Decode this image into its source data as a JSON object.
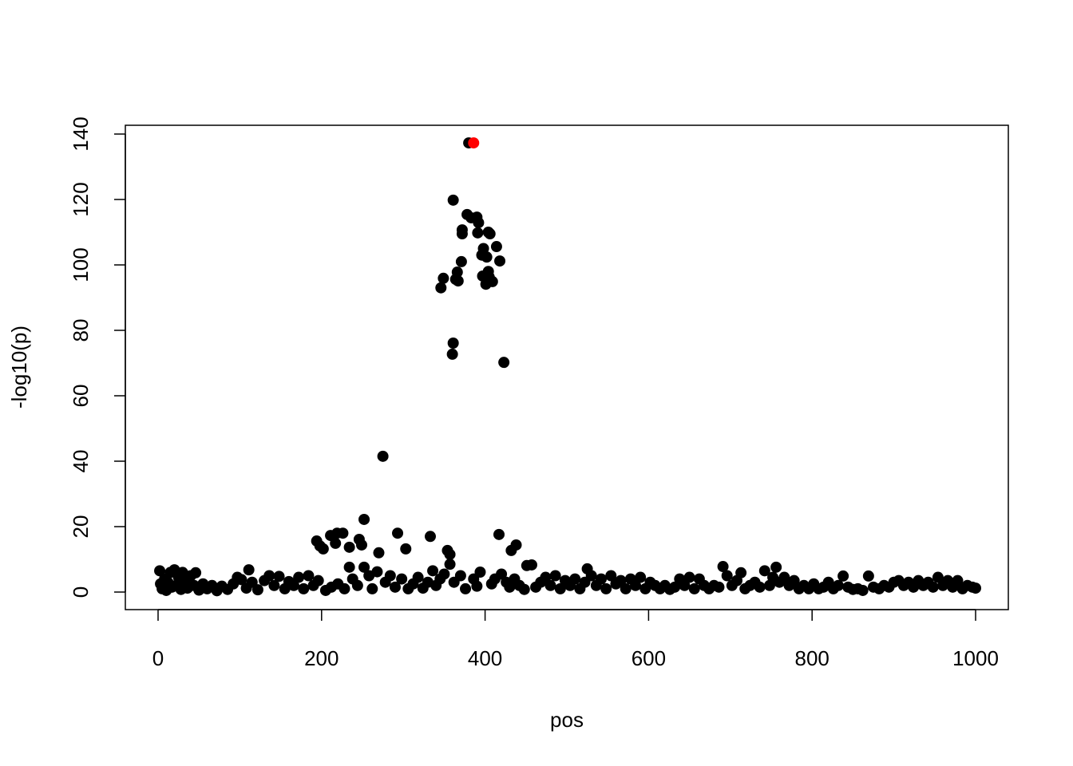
{
  "chart_data": {
    "type": "scatter",
    "title": "",
    "xlabel": "pos",
    "ylabel": "-log10(p)",
    "xlim": [
      -40,
      1040
    ],
    "ylim": [
      -5,
      143
    ],
    "xticks": [
      0,
      200,
      400,
      600,
      800,
      1000
    ],
    "yticks": [
      0,
      20,
      40,
      60,
      80,
      100,
      120,
      140
    ],
    "grid": false,
    "legend": "none",
    "colors": {
      "default": "#000000",
      "highlight": "#FF0000"
    },
    "series": [
      {
        "color": "#000000",
        "points": [
          [
            380,
            137.3
          ],
          [
            361,
            119.8
          ],
          [
            378,
            115.4
          ],
          [
            383,
            114.4
          ],
          [
            390,
            114.6
          ],
          [
            392,
            112.9
          ],
          [
            372,
            110.7
          ],
          [
            372,
            109.5
          ],
          [
            391,
            109.8
          ],
          [
            404,
            110
          ],
          [
            406,
            109.5
          ],
          [
            414,
            105.6
          ],
          [
            398,
            105
          ],
          [
            396,
            103
          ],
          [
            402,
            102.4
          ],
          [
            371,
            101
          ],
          [
            418,
            101.2
          ],
          [
            349,
            95.9
          ],
          [
            346,
            93
          ],
          [
            366,
            97.8
          ],
          [
            364,
            95.6
          ],
          [
            367,
            95.1
          ],
          [
            397,
            96.6
          ],
          [
            405,
            96.3
          ],
          [
            409,
            94.9
          ],
          [
            401,
            94.1
          ],
          [
            404,
            98
          ],
          [
            361,
            76.1
          ],
          [
            360,
            72.7
          ],
          [
            423,
            70.2
          ],
          [
            275,
            41.5
          ],
          [
            252,
            22.2
          ],
          [
            194,
            15.6
          ],
          [
            202,
            13.2
          ],
          [
            198,
            14.1
          ],
          [
            211,
            17.3
          ],
          [
            219,
            18
          ],
          [
            226,
            18
          ],
          [
            217,
            14.9
          ],
          [
            234,
            13.7
          ],
          [
            246,
            16.1
          ],
          [
            249,
            14.4
          ],
          [
            270,
            12
          ],
          [
            293,
            18
          ],
          [
            303,
            13.2
          ],
          [
            333,
            17
          ],
          [
            354,
            12.7
          ],
          [
            357,
            11.5
          ],
          [
            417,
            17.6
          ],
          [
            438,
            14.4
          ],
          [
            432,
            12.7
          ],
          [
            357,
            8.5
          ],
          [
            394,
            6.1
          ],
          [
            234,
            7.6
          ],
          [
            252,
            7.6
          ],
          [
            111,
            6.8
          ],
          [
            46,
            5.9
          ],
          [
            691,
            7.8
          ],
          [
            756,
            7.6
          ],
          [
            525,
            7.1
          ],
          [
            451,
            8.1
          ],
          [
            457,
            8.3
          ],
          [
            838,
            4.9
          ],
          [
            869,
            4.9
          ],
          [
            713,
            5.9
          ],
          [
            2,
            6.5
          ],
          [
            3,
            2.5
          ],
          [
            5,
            1
          ],
          [
            8,
            4
          ],
          [
            10,
            0.5
          ],
          [
            12,
            3
          ],
          [
            15,
            6
          ],
          [
            17,
            1.5
          ],
          [
            20,
            6.8
          ],
          [
            22,
            2
          ],
          [
            25,
            4.5
          ],
          [
            28,
            0.8
          ],
          [
            30,
            6
          ],
          [
            33,
            3
          ],
          [
            36,
            1.2
          ],
          [
            40,
            5
          ],
          [
            44,
            2
          ],
          [
            50,
            0.6
          ],
          [
            55,
            2.5
          ],
          [
            60,
            1
          ],
          [
            66,
            2
          ],
          [
            72,
            0.4
          ],
          [
            78,
            1.8
          ],
          [
            85,
            0.8
          ],
          [
            92,
            2.5
          ],
          [
            97,
            4.5
          ],
          [
            102,
            3.8
          ],
          [
            108,
            1.2
          ],
          [
            115,
            3
          ],
          [
            122,
            0.7
          ],
          [
            130,
            3.5
          ],
          [
            136,
            5
          ],
          [
            142,
            2
          ],
          [
            148,
            4.8
          ],
          [
            155,
            1
          ],
          [
            160,
            3.2
          ],
          [
            166,
            2
          ],
          [
            172,
            4.5
          ],
          [
            178,
            1
          ],
          [
            184,
            5
          ],
          [
            190,
            2
          ],
          [
            196,
            3.5
          ],
          [
            205,
            0.5
          ],
          [
            212,
            1.5
          ],
          [
            220,
            2.5
          ],
          [
            228,
            1
          ],
          [
            238,
            4
          ],
          [
            244,
            2
          ],
          [
            258,
            5
          ],
          [
            262,
            1
          ],
          [
            268,
            6.2
          ],
          [
            278,
            3
          ],
          [
            284,
            5
          ],
          [
            290,
            1.5
          ],
          [
            298,
            4
          ],
          [
            306,
            1
          ],
          [
            312,
            2.5
          ],
          [
            318,
            4.5
          ],
          [
            324,
            1.2
          ],
          [
            330,
            3
          ],
          [
            336,
            6.5
          ],
          [
            340,
            2
          ],
          [
            345,
            4
          ],
          [
            350,
            5.5
          ],
          [
            362,
            3
          ],
          [
            370,
            5
          ],
          [
            376,
            1
          ],
          [
            386,
            4
          ],
          [
            390,
            1.8
          ],
          [
            408,
            2.5
          ],
          [
            412,
            4
          ],
          [
            420,
            5.5
          ],
          [
            426,
            3
          ],
          [
            430,
            1.5
          ],
          [
            436,
            4
          ],
          [
            442,
            2
          ],
          [
            448,
            0.8
          ],
          [
            462,
            1.5
          ],
          [
            468,
            3
          ],
          [
            474,
            4.5
          ],
          [
            480,
            2
          ],
          [
            486,
            5
          ],
          [
            492,
            1
          ],
          [
            498,
            3.5
          ],
          [
            504,
            2
          ],
          [
            510,
            4
          ],
          [
            516,
            1
          ],
          [
            522,
            3
          ],
          [
            530,
            5
          ],
          [
            536,
            2
          ],
          [
            542,
            4
          ],
          [
            548,
            1
          ],
          [
            554,
            5
          ],
          [
            560,
            2.5
          ],
          [
            566,
            3.5
          ],
          [
            572,
            1
          ],
          [
            578,
            4
          ],
          [
            584,
            2
          ],
          [
            590,
            4.5
          ],
          [
            596,
            1
          ],
          [
            602,
            3
          ],
          [
            608,
            2
          ],
          [
            614,
            1
          ],
          [
            620,
            2
          ],
          [
            626,
            0.8
          ],
          [
            632,
            1.5
          ],
          [
            638,
            4
          ],
          [
            644,
            2
          ],
          [
            650,
            4.5
          ],
          [
            656,
            1
          ],
          [
            662,
            4
          ],
          [
            668,
            2
          ],
          [
            674,
            1
          ],
          [
            680,
            2
          ],
          [
            686,
            1.5
          ],
          [
            696,
            5
          ],
          [
            702,
            2
          ],
          [
            708,
            3.5
          ],
          [
            718,
            1
          ],
          [
            724,
            2
          ],
          [
            730,
            3
          ],
          [
            736,
            1.5
          ],
          [
            742,
            6.5
          ],
          [
            748,
            2
          ],
          [
            752,
            4.5
          ],
          [
            760,
            3
          ],
          [
            766,
            4.5
          ],
          [
            772,
            2
          ],
          [
            778,
            3.5
          ],
          [
            784,
            1
          ],
          [
            790,
            2
          ],
          [
            796,
            1
          ],
          [
            802,
            2.5
          ],
          [
            808,
            1
          ],
          [
            814,
            1.5
          ],
          [
            820,
            3
          ],
          [
            826,
            1
          ],
          [
            832,
            2
          ],
          [
            844,
            1.5
          ],
          [
            850,
            0.8
          ],
          [
            856,
            1
          ],
          [
            862,
            0.5
          ],
          [
            875,
            1.5
          ],
          [
            882,
            1
          ],
          [
            888,
            2
          ],
          [
            894,
            1.5
          ],
          [
            900,
            3
          ],
          [
            906,
            3.5
          ],
          [
            912,
            2
          ],
          [
            918,
            3
          ],
          [
            924,
            1.5
          ],
          [
            930,
            3.5
          ],
          [
            936,
            2
          ],
          [
            942,
            3
          ],
          [
            948,
            1.5
          ],
          [
            954,
            4.5
          ],
          [
            960,
            2
          ],
          [
            966,
            3.5
          ],
          [
            972,
            1.5
          ],
          [
            978,
            3.5
          ],
          [
            984,
            1
          ],
          [
            990,
            2
          ],
          [
            996,
            1.5
          ],
          [
            1000,
            1.2
          ]
        ]
      },
      {
        "color": "#FF0000",
        "points": [
          [
            386,
            137.3
          ]
        ]
      }
    ]
  }
}
